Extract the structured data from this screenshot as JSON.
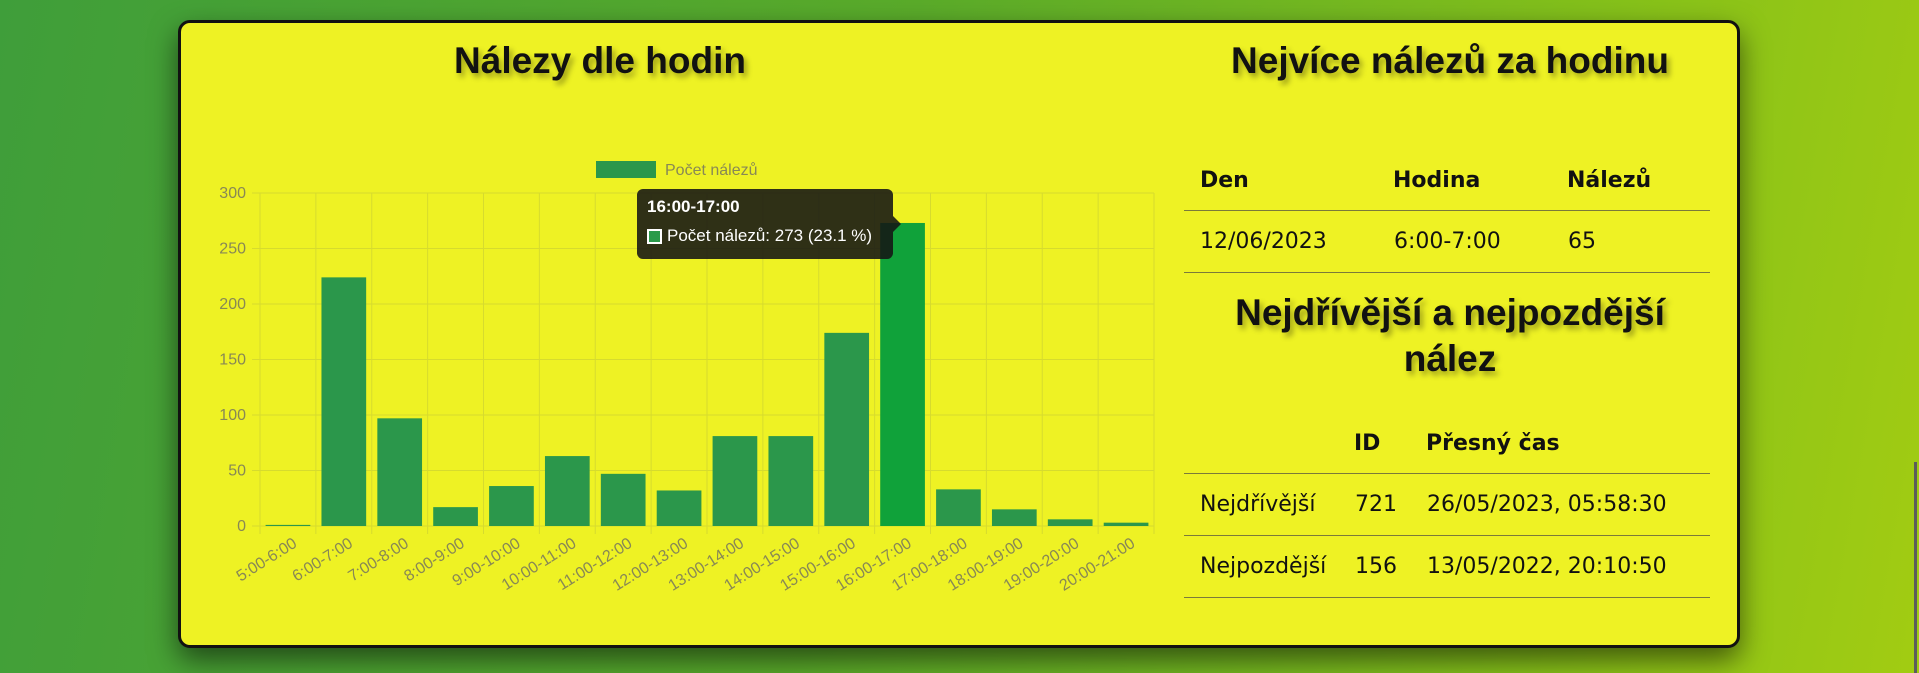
{
  "left_title": "Nálezy dle hodin",
  "right_title": "Nejvíce nálezů za hodinu",
  "right_title2_line1": "Nejdřívější a nejpozdější",
  "right_title2_line2": "nález",
  "colors": {
    "bar": "#2b974b",
    "bar_active": "#10a23a",
    "panel": "#eef224",
    "grid": "#d6db2e",
    "tick": "#888855"
  },
  "chart_data": {
    "type": "bar",
    "legend": "Počet nálezů",
    "legend_position": "top",
    "categories": [
      "5:00-6:00",
      "6:00-7:00",
      "7:00-8:00",
      "8:00-9:00",
      "9:00-10:00",
      "10:00-11:00",
      "11:00-12:00",
      "12:00-13:00",
      "13:00-14:00",
      "14:00-15:00",
      "15:00-16:00",
      "16:00-17:00",
      "17:00-18:00",
      "18:00-19:00",
      "19:00-20:00",
      "20:00-21:00"
    ],
    "series": [
      {
        "name": "Počet nálezů",
        "values": [
          1,
          224,
          97,
          17,
          36,
          63,
          47,
          32,
          81,
          81,
          174,
          273,
          33,
          15,
          6,
          3
        ]
      }
    ],
    "ylim": [
      0,
      300
    ],
    "yticks": [
      0,
      50,
      100,
      150,
      200,
      250,
      300
    ],
    "grid": true,
    "highlighted_index": 11
  },
  "tooltip": {
    "title": "16:00-17:00",
    "text": "Počet nálezů: 273 (23.1 %)"
  },
  "table1": {
    "headers": [
      "Den",
      "Hodina",
      "Nálezů"
    ],
    "rows": [
      [
        "12/06/2023",
        "6:00-7:00",
        "65"
      ]
    ]
  },
  "table2": {
    "headers": [
      "",
      "ID",
      "Přesný čas"
    ],
    "rows": [
      [
        "Nejdřívější",
        "721",
        "26/05/2023, 05:58:30"
      ],
      [
        "Nejpozdější",
        "156",
        "13/05/2022, 20:10:50"
      ]
    ]
  }
}
